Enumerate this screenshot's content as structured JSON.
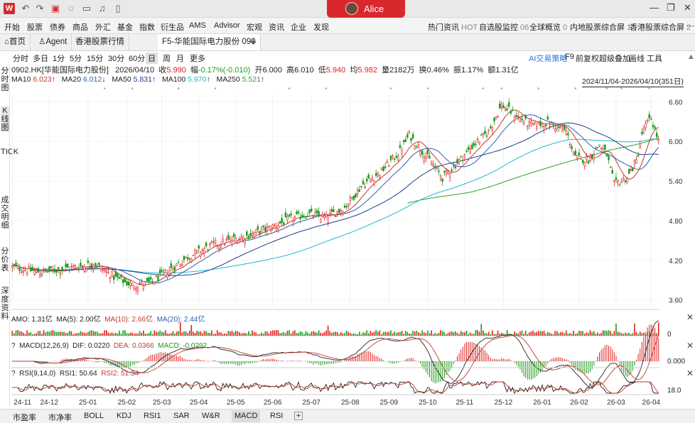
{
  "titlebar": {
    "user_name": "Alice",
    "logo_letter": "W"
  },
  "menu": {
    "left": [
      "开始",
      "股票",
      "债券",
      "商品",
      "外汇",
      "基金",
      "指数",
      "衍生品",
      "AMS",
      "Advisor",
      "宏观",
      "资讯",
      "企业",
      "发现"
    ],
    "right": [
      {
        "label": "热门资讯",
        "count": "HOT"
      },
      {
        "label": "自选股监控",
        "count": "06"
      },
      {
        "label": "全球概览",
        "count": "0"
      },
      {
        "label": "内地股票综合屏",
        "count": "1"
      },
      {
        "label": "香港股票综合屏",
        "count": "2"
      }
    ]
  },
  "tabs": [
    "首页",
    "Agent",
    "香港股票行情",
    "F5-华能国际电力股份 090"
  ],
  "periods": [
    "分时",
    "多日",
    "1分",
    "5分",
    "15分",
    "30分",
    "60分",
    "日",
    "周",
    "月",
    "更多"
  ],
  "toolbar_right": [
    "AI交易策略",
    "F9",
    "前复权",
    "超级叠加",
    "画线",
    "工具"
  ],
  "sidebar": [
    "分时图",
    "K线图",
    "TICK",
    "成交明细",
    "分价表",
    "深度资料"
  ],
  "quote": {
    "symbol": "0902.HK[华能国际电力股份]",
    "date": "2026/04/10",
    "close_label": "收",
    "close": "5.990",
    "change_label": "幅",
    "change": "-0.17%(-0.010)",
    "open_label": "开",
    "open": "6.000",
    "high_label": "高",
    "high": "6.010",
    "low_label": "低",
    "low": "5.940",
    "avg_label": "均",
    "avg": "5.982",
    "vol_label": "量",
    "vol": "2182万",
    "turnover_label": "换",
    "turnover": "0.46%",
    "amp_label": "振",
    "amp": "1.17%",
    "amount_label": "额",
    "amount": "1.31亿"
  },
  "ma": [
    {
      "label": "MA10",
      "value": "6.023",
      "color": "#c0392b"
    },
    {
      "label": "MA20",
      "value": "6.012",
      "color": "#2c5fb8"
    },
    {
      "label": "MA50",
      "value": "5.831",
      "color": "#1f3c88"
    },
    {
      "label": "MA100",
      "value": "5.970",
      "color": "#1eb8d0"
    },
    {
      "label": "MA250",
      "value": "5.521",
      "color": "#2e9e2e"
    }
  ],
  "date_range": "2024/11/04-2026/04/10(351日)",
  "panels": {
    "amo": {
      "label": "AMO: 1.31亿",
      "ma5": "MA(5): 2.00亿",
      "ma10": "MA(10): 2.66亿",
      "ma20": "MA(20): 2.44亿",
      "axis": "0"
    },
    "macd": {
      "label": "MACD(12,26,9)",
      "dif": "DIF: 0.0220",
      "dea": "DEA: 0.0366",
      "macd": "MACD: -0.0292",
      "axis": "0.000"
    },
    "rsi": {
      "label": "RSI(9,14,0)",
      "rsi1": "RSI1: 50.64",
      "rsi2": "RSI2: 51.34",
      "axis": "18.0"
    }
  },
  "bottom_tabs": [
    "市盈率",
    "市净率",
    "BOLL",
    "KDJ",
    "RSI1",
    "SAR",
    "W&R",
    "MACD",
    "RSI"
  ],
  "chart_data": {
    "type": "candlestick",
    "y_ticks": [
      "6.60",
      "6.00",
      "5.40",
      "4.80",
      "4.20",
      "3.60"
    ],
    "ylim": [
      3.5,
      6.7
    ],
    "x_ticks": [
      "24-11",
      "24-12",
      "25-01",
      "25-02",
      "25-03",
      "25-04",
      "25-05",
      "25-06",
      "25-07",
      "25-08",
      "25-09",
      "25-10",
      "25-11",
      "25-12",
      "26-01",
      "26-02",
      "26-03",
      "26-04"
    ],
    "trend_anchors": [
      [
        0,
        4.1
      ],
      [
        15,
        4.02
      ],
      [
        30,
        4.08
      ],
      [
        45,
        4.15
      ],
      [
        55,
        3.95
      ],
      [
        65,
        3.82
      ],
      [
        75,
        3.86
      ],
      [
        85,
        4.05
      ],
      [
        95,
        4.25
      ],
      [
        110,
        4.45
      ],
      [
        125,
        4.55
      ],
      [
        140,
        4.7
      ],
      [
        150,
        4.82
      ],
      [
        160,
        4.9
      ],
      [
        170,
        4.85
      ],
      [
        180,
        5.0
      ],
      [
        190,
        5.35
      ],
      [
        200,
        5.55
      ],
      [
        210,
        5.85
      ],
      [
        215,
        6.1
      ],
      [
        225,
        5.75
      ],
      [
        233,
        5.45
      ],
      [
        240,
        5.65
      ],
      [
        250,
        5.95
      ],
      [
        258,
        6.15
      ],
      [
        265,
        6.55
      ],
      [
        270,
        6.45
      ],
      [
        280,
        6.25
      ],
      [
        290,
        6.28
      ],
      [
        300,
        6.15
      ],
      [
        305,
        5.75
      ],
      [
        312,
        5.72
      ],
      [
        318,
        5.95
      ],
      [
        322,
        5.8
      ],
      [
        326,
        5.35
      ],
      [
        333,
        5.45
      ],
      [
        338,
        5.7
      ],
      [
        342,
        6.2
      ],
      [
        346,
        6.35
      ],
      [
        350,
        6.0
      ]
    ]
  }
}
